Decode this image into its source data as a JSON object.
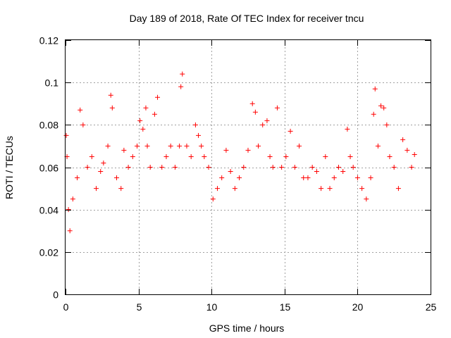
{
  "chart_data": {
    "type": "scatter",
    "title": "Day 189 of 2018, Rate Of TEC Index for receiver tncu",
    "xlabel": "GPS time / hours",
    "ylabel": "ROTI / TECUs",
    "xlim": [
      0,
      25
    ],
    "ylim": [
      0,
      0.12
    ],
    "xticks": [
      0,
      5,
      10,
      15,
      20,
      25
    ],
    "xtick_labels": [
      "0",
      "5",
      "10",
      "15",
      "20",
      "25"
    ],
    "yticks": [
      0,
      0.02,
      0.04,
      0.06,
      0.08,
      0.1,
      0.12
    ],
    "ytick_labels": [
      "0",
      "0.02",
      "0.04",
      "0.06",
      "0.08",
      "0.1",
      "0.12"
    ],
    "grid": true,
    "marker": "+",
    "series": [
      {
        "name": "ROTI",
        "color": "#ff0000",
        "x": [
          0.05,
          0.1,
          0.2,
          0.3,
          0.5,
          0.8,
          1.0,
          1.2,
          1.5,
          1.8,
          2.1,
          2.4,
          2.6,
          2.9,
          3.1,
          3.2,
          3.5,
          3.8,
          4.0,
          4.3,
          4.6,
          4.9,
          5.1,
          5.3,
          5.5,
          5.6,
          5.8,
          6.1,
          6.3,
          6.6,
          6.9,
          7.2,
          7.5,
          7.8,
          7.9,
          8.0,
          8.3,
          8.6,
          8.9,
          9.1,
          9.3,
          9.5,
          9.8,
          10.1,
          10.4,
          10.7,
          11.0,
          11.3,
          11.6,
          11.9,
          12.2,
          12.5,
          12.8,
          13.0,
          13.2,
          13.5,
          13.8,
          14.0,
          14.2,
          14.5,
          14.8,
          15.1,
          15.4,
          15.7,
          16.0,
          16.3,
          16.6,
          16.9,
          17.2,
          17.5,
          17.8,
          18.1,
          18.4,
          18.7,
          19.0,
          19.3,
          19.5,
          19.7,
          20.0,
          20.3,
          20.6,
          20.9,
          21.1,
          21.2,
          21.4,
          21.6,
          21.8,
          22.0,
          22.2,
          22.5,
          22.8,
          23.1,
          23.4,
          23.7,
          23.9
        ],
        "y": [
          0.075,
          0.065,
          0.04,
          0.03,
          0.045,
          0.055,
          0.087,
          0.08,
          0.06,
          0.065,
          0.05,
          0.058,
          0.062,
          0.07,
          0.094,
          0.088,
          0.055,
          0.05,
          0.068,
          0.06,
          0.065,
          0.07,
          0.082,
          0.078,
          0.088,
          0.07,
          0.06,
          0.085,
          0.093,
          0.06,
          0.065,
          0.07,
          0.06,
          0.07,
          0.098,
          0.104,
          0.07,
          0.065,
          0.08,
          0.075,
          0.07,
          0.065,
          0.06,
          0.045,
          0.05,
          0.055,
          0.068,
          0.058,
          0.05,
          0.055,
          0.06,
          0.068,
          0.09,
          0.086,
          0.07,
          0.08,
          0.082,
          0.065,
          0.06,
          0.088,
          0.06,
          0.065,
          0.077,
          0.06,
          0.07,
          0.055,
          0.055,
          0.06,
          0.058,
          0.05,
          0.065,
          0.05,
          0.055,
          0.06,
          0.058,
          0.078,
          0.065,
          0.06,
          0.055,
          0.05,
          0.045,
          0.055,
          0.085,
          0.097,
          0.07,
          0.089,
          0.088,
          0.08,
          0.065,
          0.06,
          0.05,
          0.073,
          0.068,
          0.06,
          0.066
        ]
      }
    ]
  }
}
